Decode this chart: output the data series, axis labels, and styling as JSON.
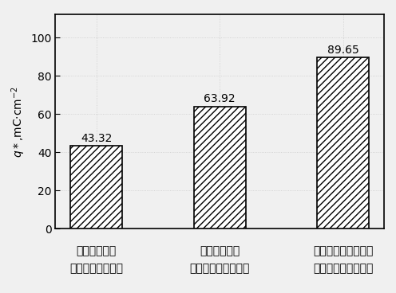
{
  "categories_line1": [
    "钛基体未处理",
    "钛基体未处理",
    "钛基体离子氮化处理"
  ],
  "categories_line2": [
    "热分解法制备阳极",
    "溶胶凝胶法制备阳极",
    "溶胶凝胶法制备阳极"
  ],
  "values": [
    43.32,
    63.92,
    89.65
  ],
  "bar_color": "#ffffff",
  "bar_edgecolor": "#000000",
  "hatch": "////",
  "ylabel": "$q*$,mC·cm$^{-2}$",
  "ylim": [
    0,
    112
  ],
  "yticks": [
    0,
    20,
    40,
    60,
    80,
    100
  ],
  "label_fontsize": 10,
  "tick_fontsize": 10,
  "bar_width": 0.42,
  "value_label_fontsize": 10,
  "background_color": "#f0f0f0",
  "grid_color": "#cccccc",
  "grid_style": ":"
}
